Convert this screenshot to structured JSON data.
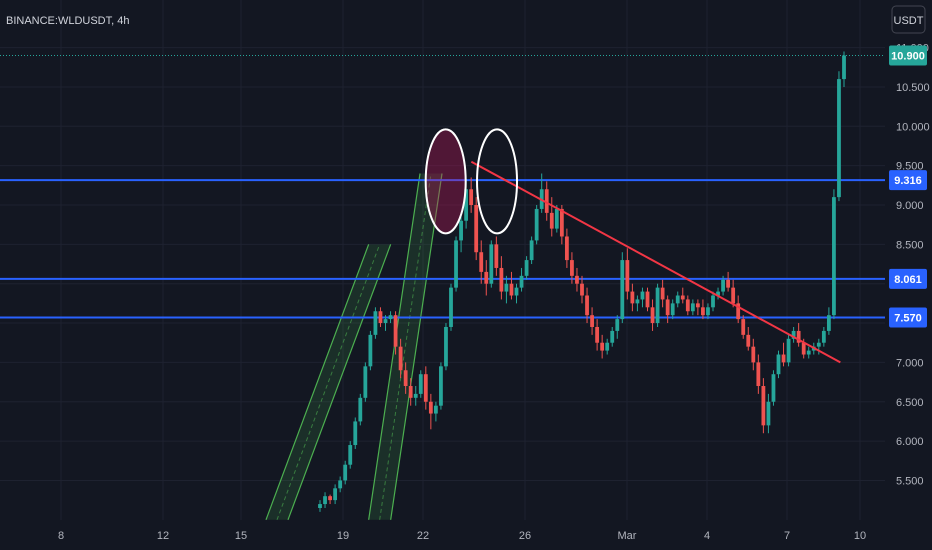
{
  "header": {
    "symbol": "BINANCE:WLDUSDT, 4h",
    "currency": "USDT"
  },
  "colors": {
    "background": "#131722",
    "up": "#26a69a",
    "down": "#ef5350",
    "level_line": "#2962ff",
    "trend_line": "#f23645",
    "channel": "#4caf50",
    "highlight": "#ffffff",
    "grid": "#1e2230",
    "text": "#b2b5be"
  },
  "chart_data": {
    "type": "candlestick",
    "title": "BINANCE:WLDUSDT, 4h",
    "xlabel": "",
    "ylabel": "USDT",
    "x_tick_labels": [
      "8",
      "12",
      "15",
      "19",
      "22",
      "26",
      "Mar",
      "4",
      "7",
      "10"
    ],
    "y_tick_labels": [
      "5.500",
      "6.000",
      "6.500",
      "7.000",
      "7.500",
      "8.000",
      "8.500",
      "9.000",
      "9.500",
      "10.000",
      "10.500",
      "11.000"
    ],
    "ylim": [
      5.1,
      11.6
    ],
    "grid": true,
    "current_price": 10.9,
    "horizontal_levels": [
      9.316,
      8.061,
      7.57
    ],
    "price_badges": [
      10.9,
      9.316,
      8.061,
      7.57
    ],
    "trend_line": {
      "from": [
        "Feb 24",
        9.55
      ],
      "to": [
        "Mar 9",
        7.0
      ]
    },
    "channels": [
      {
        "from": [
          "Feb 16",
          5.0
        ],
        "to": [
          "Feb 20",
          8.5
        ]
      },
      {
        "from": [
          "Feb 20",
          5.0
        ],
        "to": [
          "Feb 22",
          9.4
        ]
      }
    ],
    "highlight_ellipses": [
      {
        "center": [
          "Feb 23",
          9.3
        ],
        "filled": true
      },
      {
        "center": [
          "Feb 25",
          9.3
        ],
        "filled": false
      }
    ],
    "series": [
      {
        "ohlc": [
          [
            5.15,
            5.25,
            5.1,
            5.2
          ],
          [
            5.2,
            5.35,
            5.15,
            5.3
          ],
          [
            5.3,
            5.32,
            5.2,
            5.25
          ],
          [
            5.25,
            5.45,
            5.2,
            5.4
          ],
          [
            5.4,
            5.55,
            5.35,
            5.5
          ],
          [
            5.5,
            5.75,
            5.45,
            5.7
          ],
          [
            5.7,
            6.0,
            5.65,
            5.95
          ],
          [
            5.95,
            6.3,
            5.9,
            6.25
          ],
          [
            6.25,
            6.6,
            6.2,
            6.55
          ],
          [
            6.55,
            7.0,
            6.5,
            6.95
          ],
          [
            6.95,
            7.4,
            6.9,
            7.35
          ],
          [
            7.35,
            7.7,
            7.3,
            7.65
          ],
          [
            7.65,
            7.7,
            7.45,
            7.5
          ],
          [
            7.5,
            7.6,
            7.4,
            7.55
          ],
          [
            7.55,
            7.65,
            7.5,
            7.6
          ],
          [
            7.6,
            7.65,
            7.1,
            7.2
          ],
          [
            7.2,
            7.3,
            6.8,
            6.9
          ],
          [
            6.9,
            7.0,
            6.6,
            6.7
          ],
          [
            6.7,
            6.8,
            6.45,
            6.55
          ],
          [
            6.55,
            6.7,
            6.45,
            6.6
          ],
          [
            6.6,
            6.9,
            6.55,
            6.85
          ],
          [
            6.85,
            6.95,
            6.4,
            6.5
          ],
          [
            6.5,
            6.6,
            6.15,
            6.35
          ],
          [
            6.35,
            6.5,
            6.25,
            6.45
          ],
          [
            6.45,
            7.0,
            6.4,
            6.95
          ],
          [
            6.95,
            7.5,
            6.9,
            7.45
          ],
          [
            7.45,
            8.0,
            7.4,
            7.95
          ],
          [
            7.95,
            8.6,
            7.9,
            8.55
          ],
          [
            8.55,
            8.9,
            8.4,
            8.8
          ],
          [
            8.8,
            9.3,
            8.7,
            9.2
          ],
          [
            9.2,
            9.35,
            8.9,
            9.0
          ],
          [
            9.0,
            9.1,
            8.3,
            8.4
          ],
          [
            8.4,
            8.55,
            8.0,
            8.15
          ],
          [
            8.15,
            8.3,
            7.85,
            8.0
          ],
          [
            8.0,
            8.55,
            7.95,
            8.5
          ],
          [
            8.5,
            8.6,
            8.1,
            8.2
          ],
          [
            8.2,
            8.35,
            7.8,
            7.9
          ],
          [
            7.9,
            8.1,
            7.75,
            8.0
          ],
          [
            8.0,
            8.15,
            7.8,
            7.85
          ],
          [
            7.85,
            8.0,
            7.75,
            7.95
          ],
          [
            7.95,
            8.2,
            7.9,
            8.1
          ],
          [
            8.1,
            8.35,
            8.05,
            8.3
          ],
          [
            8.3,
            8.6,
            8.25,
            8.55
          ],
          [
            8.55,
            9.0,
            8.5,
            8.95
          ],
          [
            8.95,
            9.4,
            8.9,
            9.2
          ],
          [
            9.2,
            9.3,
            8.8,
            8.9
          ],
          [
            8.9,
            9.1,
            8.6,
            8.7
          ],
          [
            8.7,
            9.0,
            8.65,
            8.95
          ],
          [
            8.95,
            9.0,
            8.5,
            8.6
          ],
          [
            8.6,
            8.7,
            8.2,
            8.3
          ],
          [
            8.3,
            8.4,
            8.0,
            8.1
          ],
          [
            8.1,
            8.2,
            7.9,
            8.0
          ],
          [
            8.0,
            8.1,
            7.75,
            7.85
          ],
          [
            7.85,
            7.95,
            7.5,
            7.6
          ],
          [
            7.6,
            7.7,
            7.35,
            7.45
          ],
          [
            7.45,
            7.55,
            7.15,
            7.25
          ],
          [
            7.25,
            7.35,
            7.05,
            7.15
          ],
          [
            7.15,
            7.3,
            7.1,
            7.25
          ],
          [
            7.25,
            7.45,
            7.2,
            7.4
          ],
          [
            7.4,
            7.6,
            7.3,
            7.55
          ],
          [
            7.55,
            8.4,
            7.5,
            8.3
          ],
          [
            8.3,
            8.45,
            7.8,
            7.9
          ],
          [
            7.9,
            8.0,
            7.65,
            7.75
          ],
          [
            7.75,
            7.85,
            7.65,
            7.8
          ],
          [
            7.8,
            7.95,
            7.7,
            7.9
          ],
          [
            7.9,
            7.95,
            7.65,
            7.7
          ],
          [
            7.7,
            7.8,
            7.4,
            7.5
          ],
          [
            7.5,
            8.0,
            7.45,
            7.95
          ],
          [
            7.95,
            8.05,
            7.7,
            7.8
          ],
          [
            7.8,
            7.85,
            7.5,
            7.6
          ],
          [
            7.6,
            7.8,
            7.55,
            7.75
          ],
          [
            7.75,
            7.9,
            7.7,
            7.85
          ],
          [
            7.85,
            7.95,
            7.75,
            7.8
          ],
          [
            7.8,
            7.85,
            7.6,
            7.65
          ],
          [
            7.65,
            7.8,
            7.6,
            7.75
          ],
          [
            7.75,
            7.8,
            7.6,
            7.7
          ],
          [
            7.7,
            7.8,
            7.55,
            7.6
          ],
          [
            7.6,
            7.75,
            7.55,
            7.7
          ],
          [
            7.7,
            7.9,
            7.65,
            7.85
          ],
          [
            7.85,
            7.95,
            7.8,
            7.9
          ],
          [
            7.9,
            8.1,
            7.85,
            8.05
          ],
          [
            8.05,
            8.15,
            7.9,
            7.95
          ],
          [
            7.95,
            8.05,
            7.7,
            7.75
          ],
          [
            7.75,
            7.85,
            7.5,
            7.55
          ],
          [
            7.55,
            7.6,
            7.3,
            7.35
          ],
          [
            7.35,
            7.45,
            7.15,
            7.2
          ],
          [
            7.2,
            7.3,
            6.9,
            7.0
          ],
          [
            7.0,
            7.1,
            6.6,
            6.7
          ],
          [
            6.7,
            6.8,
            6.1,
            6.2
          ],
          [
            6.2,
            6.6,
            6.1,
            6.5
          ],
          [
            6.5,
            6.9,
            6.45,
            6.85
          ],
          [
            6.85,
            7.15,
            6.8,
            7.1
          ],
          [
            7.1,
            7.25,
            6.95,
            7.0
          ],
          [
            7.0,
            7.35,
            6.95,
            7.3
          ],
          [
            7.3,
            7.45,
            7.25,
            7.4
          ],
          [
            7.4,
            7.5,
            7.2,
            7.25
          ],
          [
            7.25,
            7.3,
            7.05,
            7.1
          ],
          [
            7.1,
            7.2,
            7.05,
            7.15
          ],
          [
            7.15,
            7.25,
            7.1,
            7.2
          ],
          [
            7.2,
            7.3,
            7.1,
            7.25
          ],
          [
            7.25,
            7.45,
            7.2,
            7.4
          ],
          [
            7.4,
            7.7,
            7.35,
            7.6
          ],
          [
            7.6,
            9.2,
            7.55,
            9.1
          ],
          [
            9.1,
            10.7,
            9.05,
            10.6
          ],
          [
            10.6,
            10.95,
            10.5,
            10.9
          ]
        ]
      }
    ]
  }
}
